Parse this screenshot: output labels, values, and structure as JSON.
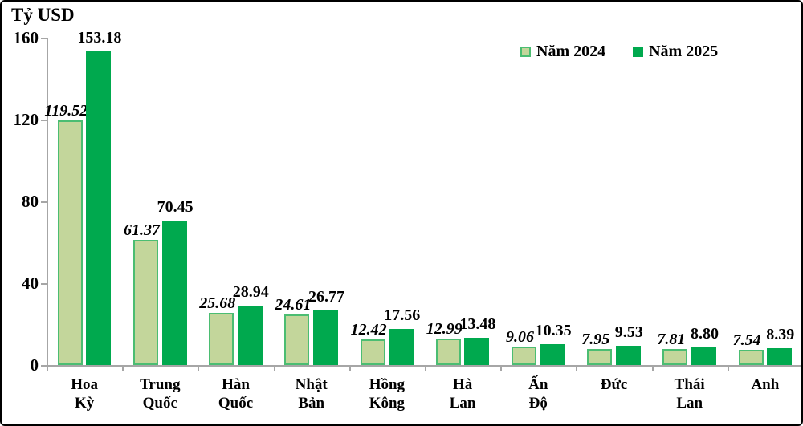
{
  "frame": {
    "background": "#ffffff",
    "border_color": "#000000"
  },
  "chart_data": {
    "type": "bar",
    "title": "",
    "axis_title": "Tỷ USD",
    "categories": [
      "Hoa Kỳ",
      "Trung Quốc",
      "Hàn Quốc",
      "Nhật Bản",
      "Hồng Kông",
      "Hà Lan",
      "Ấn Độ",
      "Đức",
      "Thái Lan",
      "Anh"
    ],
    "series": [
      {
        "name": "Năm 2024",
        "values": [
          119.52,
          61.37,
          25.68,
          24.61,
          12.42,
          12.99,
          9.06,
          7.95,
          7.81,
          7.54
        ],
        "fill": "#c3d69b",
        "border": "#4bbd72",
        "label_style": "bold-italic"
      },
      {
        "name": "Năm 2025",
        "values": [
          153.18,
          70.45,
          28.94,
          26.77,
          17.56,
          13.48,
          10.35,
          9.53,
          8.8,
          8.39
        ],
        "fill": "#00a94e",
        "border": "#00a94e",
        "label_style": "bold"
      }
    ],
    "ylim": [
      0,
      160
    ],
    "yticks": [
      0,
      40,
      80,
      120,
      160
    ],
    "grid": false,
    "legend_position": "top-right",
    "axis_color": "#a6a6a6",
    "text_color": "#000000",
    "value_label_decimals": 2
  }
}
